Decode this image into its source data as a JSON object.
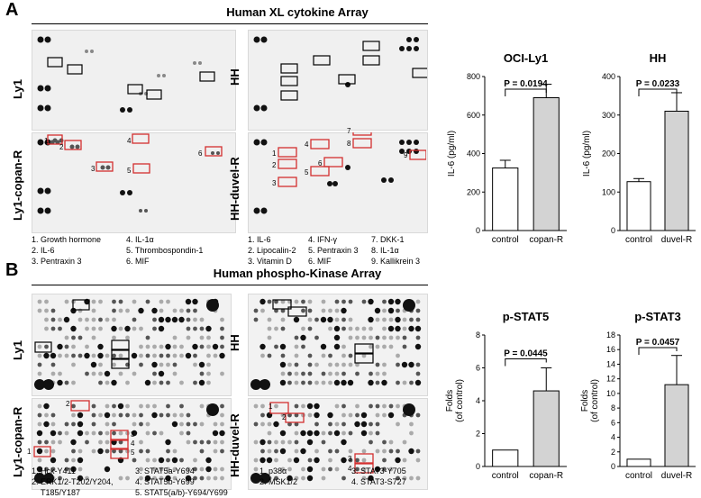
{
  "panel_a": {
    "letter": "A",
    "title": "Human XL cytokine Array",
    "blot_labels": {
      "ly1": "Ly1",
      "ly1_copan": "Ly1-copan-R",
      "hh": "HH",
      "hh_duvel": "HH-duvel-R"
    },
    "ly1_markers": [
      "1",
      "2",
      "3",
      "4",
      "5",
      "6"
    ],
    "hh_markers": [
      "1",
      "2",
      "3",
      "4",
      "5",
      "6",
      "7",
      "8",
      "9"
    ],
    "legend_ly1": [
      [
        "1. Growth hormone",
        "2. IL-6",
        "3. Pentraxin 3"
      ],
      [
        "4. IL-1α",
        "5. Thrombospondin-1",
        "6. MIF"
      ]
    ],
    "legend_hh": [
      [
        "1. IL-6",
        "2. Lipocalin-2",
        "3. Vitamin D"
      ],
      [
        "4. IFN-γ",
        "5. Pentraxin 3",
        "6. MIF"
      ],
      [
        "7. DKK-1",
        "8. IL-1α",
        "9. Kallikrein 3"
      ]
    ]
  },
  "panel_b": {
    "letter": "B",
    "title": "Human phospho-Kinase Array",
    "blot_labels": {
      "ly1": "Ly1",
      "ly1_copan": "Ly1-copan-R",
      "hh": "HH",
      "hh_duvel": "HH-duvel-R"
    },
    "ly1_markers": [
      "1",
      "2",
      "3",
      "4",
      "5"
    ],
    "hh_markers": [
      "1",
      "2",
      "3",
      "4"
    ],
    "legend_ly1": [
      [
        "1. Hck-Y411",
        "2. ERK1/2-T202/Y204,",
        "T185/Y187"
      ],
      [
        "3. STAT5a-Y694",
        "4. STAT5b-Y699",
        "5. STAT5(a/b)-Y694/Y699"
      ]
    ],
    "legend_hh": [
      [
        "1. p38α",
        "2. MSK1/2"
      ],
      [
        "3. STAT3-Y705",
        "4. STAT3-S727"
      ]
    ]
  },
  "colors": {
    "control_bar": "#ffffff",
    "treated_bar": "#d3d3d3",
    "highlight_box": "#d32f2f",
    "baseline_box": "#000000"
  },
  "chart_data": [
    {
      "type": "bar",
      "title": "OCI-Ly1",
      "ylabel": "IL-6 (pg/ml)",
      "categories": [
        "control",
        "copan-R"
      ],
      "values": [
        325,
        690
      ],
      "errors": [
        40,
        70
      ],
      "ylim": [
        0,
        800
      ],
      "yticks": [
        "0",
        "200",
        "400",
        "600",
        "800"
      ],
      "pvalue": "P = 0.0194"
    },
    {
      "type": "bar",
      "title": "HH",
      "ylabel": "IL-6 (pg/ml)",
      "categories": [
        "control",
        "duvel-R"
      ],
      "values": [
        127,
        310
      ],
      "errors": [
        8,
        48
      ],
      "ylim": [
        0,
        400
      ],
      "yticks": [
        "0",
        "100",
        "200",
        "300",
        "400"
      ],
      "pvalue": "P = 0.0233"
    },
    {
      "type": "bar",
      "title": "p-STAT5",
      "ylabel": "Folds (of control)",
      "categories": [
        "control",
        "copan-R"
      ],
      "values": [
        1,
        4.6
      ],
      "errors": [
        0,
        1.4
      ],
      "ylim": [
        0,
        8
      ],
      "yticks": [
        "0",
        "2",
        "4",
        "6",
        "8"
      ],
      "pvalue": "P = 0.0445"
    },
    {
      "type": "bar",
      "title": "p-STAT3",
      "ylabel": "Folds (of control)",
      "categories": [
        "control",
        "duvel-R"
      ],
      "values": [
        1,
        11.2
      ],
      "errors": [
        0,
        4
      ],
      "ylim": [
        0,
        18
      ],
      "yticks": [
        "0",
        "2",
        "4",
        "6",
        "8",
        "10",
        "12",
        "14",
        "16",
        "18"
      ],
      "pvalue": "P = 0.0457"
    }
  ]
}
